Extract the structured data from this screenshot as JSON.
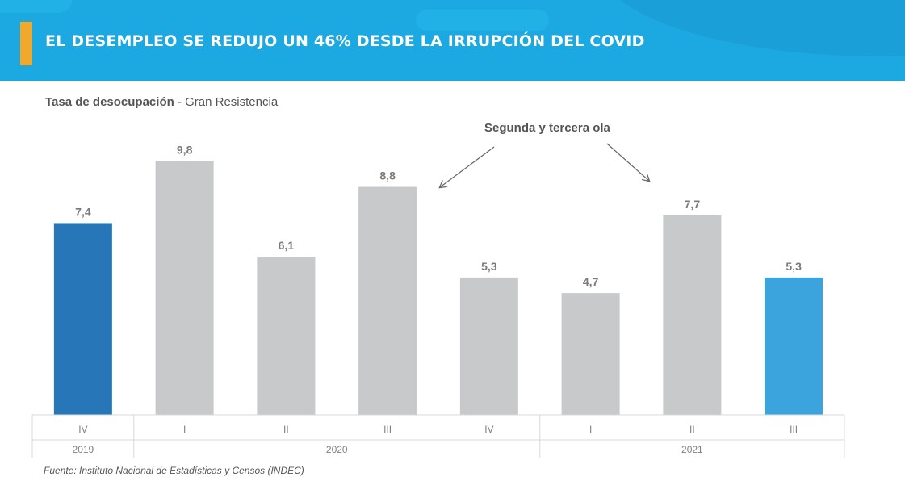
{
  "header": {
    "title": "EL DESEMPLEO SE REDUJO UN 46% DESDE LA IRRUPCIÓN DEL COVID",
    "background_color": "#1ca8e0",
    "accent_color": "#f2a82b"
  },
  "subtitle": {
    "bold": "Tasa de desocupación",
    "rest": " - Gran Resistencia"
  },
  "annotation": "Segunda y tercera ola",
  "source": "Fuente: Instituto Nacional de Estadísticas y Censos (INDEC)",
  "chart_data": {
    "type": "bar",
    "title": "Tasa de desocupación - Gran Resistencia",
    "categories": [
      "IV",
      "I",
      "II",
      "III",
      "IV",
      "I",
      "II",
      "III"
    ],
    "years": [
      {
        "label": "2019",
        "span": 1
      },
      {
        "label": "2020",
        "span": 4
      },
      {
        "label": "2021",
        "span": 3
      }
    ],
    "values": [
      7.4,
      9.8,
      6.1,
      8.8,
      5.3,
      4.7,
      7.7,
      5.3
    ],
    "value_labels": [
      "7,4",
      "9,8",
      "6,1",
      "8,8",
      "5,3",
      "4,7",
      "7,7",
      "5,3"
    ],
    "colors": [
      "#2776b8",
      "#c8c9cb",
      "#c8c9cb",
      "#c8c9cb",
      "#c8c9cb",
      "#c8c9cb",
      "#c8c9cb",
      "#3ca4dc"
    ],
    "ylim": [
      0,
      10
    ],
    "grid": false,
    "legend": "none"
  }
}
